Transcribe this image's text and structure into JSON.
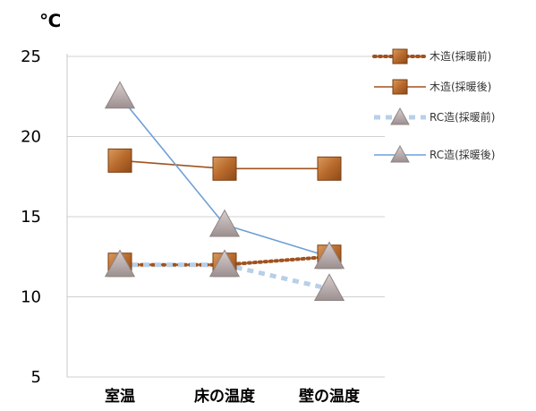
{
  "chart_data": {
    "type": "line",
    "unit_label": "℃",
    "categories": [
      "室温",
      "床の温度",
      "壁の温度"
    ],
    "y_ticks": [
      "25",
      "20",
      "15",
      "10",
      "5"
    ],
    "ylim": [
      5,
      25
    ],
    "grid": true,
    "legend_position": "right",
    "series": [
      {
        "name": "木造(採暖前)",
        "values": [
          12,
          12,
          12.5
        ],
        "color": "#a0521e",
        "line": "dotted",
        "marker": "square"
      },
      {
        "name": "木造(採暖後)",
        "values": [
          18.5,
          18,
          18
        ],
        "color": "#a0521e",
        "line": "solid",
        "marker": "square"
      },
      {
        "name": "RC造(採暖前)",
        "values": [
          12,
          12,
          10.5
        ],
        "color": "#b8cfe8",
        "line": "dashed",
        "marker": "triangle"
      },
      {
        "name": "RC造(採暖後)",
        "values": [
          22.5,
          14.5,
          12.5
        ],
        "color": "#6e9fd6",
        "line": "solid",
        "marker": "triangle"
      }
    ]
  }
}
